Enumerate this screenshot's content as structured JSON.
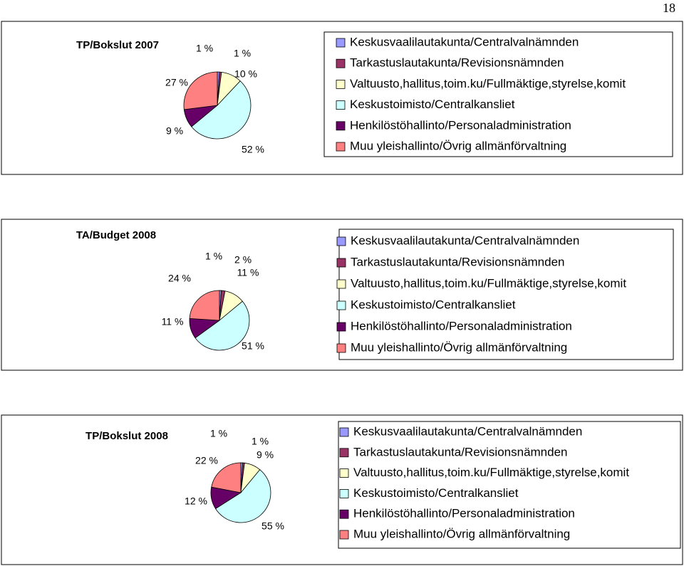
{
  "page_number": "18",
  "chart_data": [
    {
      "type": "pie",
      "title": "TP/Bokslut 2007",
      "categories": [
        "Keskusvaalilautakunta/Centralvalnämnden",
        "Tarkastuslautakunta/Revisionsnämnden",
        "Valtuusto,hallitus,toim.ku/Fullmäktige,styrelse,komit",
        "Keskustoimisto/Centralkansliet",
        "Henkilöstöhallinto/Personaladministration",
        "Muu yleishallinto/Övrig allmänförvaltning"
      ],
      "values": [
        1,
        1,
        10,
        52,
        9,
        27
      ],
      "value_labels": [
        "1 %",
        "1 %",
        "10 %",
        "52 %",
        "9 %",
        "27 %"
      ],
      "colors": [
        "#9999ff",
        "#993366",
        "#ffffcc",
        "#ccffff",
        "#660066",
        "#ff8080"
      ]
    },
    {
      "type": "pie",
      "title": "TA/Budget 2008",
      "categories": [
        "Keskusvaalilautakunta/Centralvalnämnden",
        "Tarkastuslautakunta/Revisionsnämnden",
        "Valtuusto,hallitus,toim.ku/Fullmäktige,styrelse,komit",
        "Keskustoimisto/Centralkansliet",
        "Henkilöstöhallinto/Personaladministration",
        "Muu yleishallinto/Övrig allmänförvaltning"
      ],
      "values": [
        1,
        2,
        11,
        51,
        11,
        24
      ],
      "value_labels": [
        "1 %",
        "2 %",
        "11 %",
        "51 %",
        "11 %",
        "24 %"
      ],
      "colors": [
        "#9999ff",
        "#993366",
        "#ffffcc",
        "#ccffff",
        "#660066",
        "#ff8080"
      ]
    },
    {
      "type": "pie",
      "title": "TP/Bokslut 2008",
      "categories": [
        "Keskusvaalilautakunta/Centralvalnämnden",
        "Tarkastuslautakunta/Revisionsnämnden",
        "Valtuusto,hallitus,toim.ku/Fullmäktige,styrelse,komit",
        "Keskustoimisto/Centralkansliet",
        "Henkilöstöhallinto/Personaladministration",
        "Muu yleishallinto/Övrig allmänförvaltning"
      ],
      "values": [
        1,
        1,
        9,
        55,
        12,
        22
      ],
      "value_labels": [
        "1 %",
        "1 %",
        "9 %",
        "55 %",
        "12 %",
        "22 %"
      ],
      "colors": [
        "#9999ff",
        "#993366",
        "#ffffcc",
        "#ccffff",
        "#660066",
        "#ff8080"
      ]
    }
  ]
}
